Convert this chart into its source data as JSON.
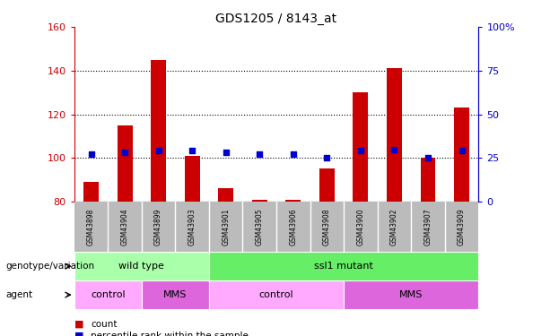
{
  "title": "GDS1205 / 8143_at",
  "samples": [
    "GSM43898",
    "GSM43904",
    "GSM43899",
    "GSM43903",
    "GSM43901",
    "GSM43905",
    "GSM43906",
    "GSM43908",
    "GSM43900",
    "GSM43902",
    "GSM43907",
    "GSM43909"
  ],
  "counts": [
    89,
    115,
    145,
    101,
    86,
    81,
    81,
    95,
    130,
    141,
    100,
    123
  ],
  "percentiles": [
    27,
    28,
    29,
    29,
    28,
    27,
    27,
    25,
    29,
    30,
    25,
    29
  ],
  "ylim_left": [
    80,
    160
  ],
  "ylim_right": [
    0,
    100
  ],
  "yticks_left": [
    80,
    100,
    120,
    140,
    160
  ],
  "yticks_right": [
    0,
    25,
    50,
    75,
    100
  ],
  "ytick_labels_right": [
    "0",
    "25",
    "50",
    "75",
    "100%"
  ],
  "hgrid_at": [
    100,
    120,
    140
  ],
  "bar_color": "#cc0000",
  "dot_color": "#0000cc",
  "genotype_groups": [
    {
      "label": "wild type",
      "start": 0,
      "end": 4,
      "color": "#aaffaa"
    },
    {
      "label": "ssl1 mutant",
      "start": 4,
      "end": 12,
      "color": "#66ee66"
    }
  ],
  "agent_groups": [
    {
      "label": "control",
      "start": 0,
      "end": 2,
      "color": "#ffaaff"
    },
    {
      "label": "MMS",
      "start": 2,
      "end": 4,
      "color": "#dd66dd"
    },
    {
      "label": "control",
      "start": 4,
      "end": 8,
      "color": "#ffaaff"
    },
    {
      "label": "MMS",
      "start": 8,
      "end": 12,
      "color": "#dd66dd"
    }
  ],
  "legend_count_color": "#cc0000",
  "legend_pct_color": "#0000cc",
  "left_axis_color": "#cc0000",
  "right_axis_color": "#0000cc",
  "tick_label_bg": "#bbbbbb",
  "tick_label_sep_color": "#ffffff",
  "genotype_label": "genotype/variation",
  "agent_label": "agent",
  "bar_width": 0.45,
  "dot_size": 18
}
